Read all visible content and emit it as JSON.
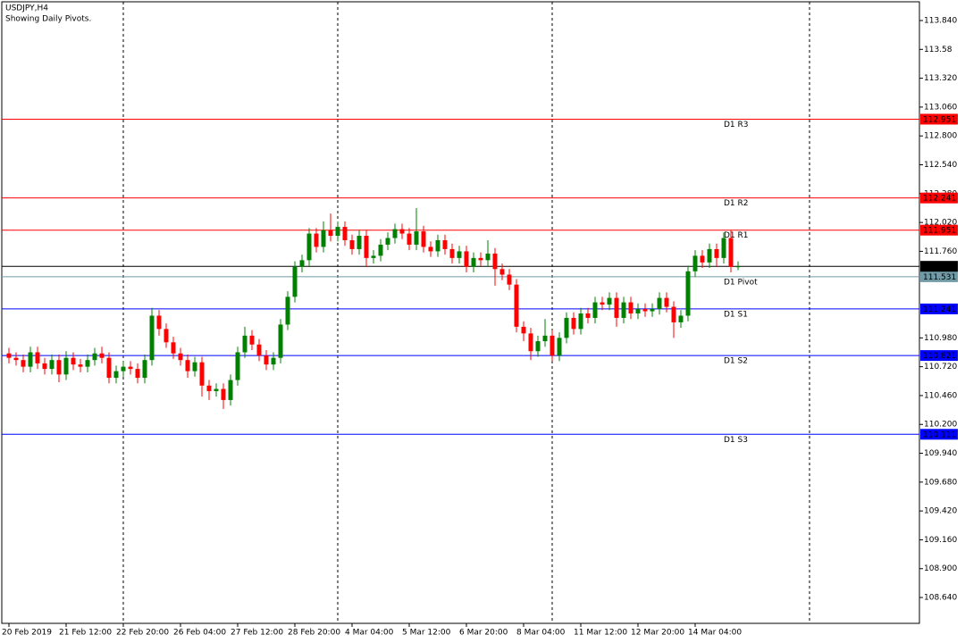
{
  "chart_data": {
    "type": "candlestick",
    "title": "USDJPY,H4",
    "subtitle": "Showing Daily Pivots.",
    "categories": [
      "20 Feb 2019",
      null,
      null,
      null,
      null,
      null,
      null,
      null,
      "21 Feb 12:00",
      null,
      null,
      null,
      null,
      null,
      null,
      null,
      "22 Feb 20:00",
      null,
      null,
      null,
      null,
      null,
      null,
      null,
      "26 Feb 04:00",
      null,
      null,
      null,
      null,
      null,
      null,
      null,
      "27 Feb 12:00",
      null,
      null,
      null,
      null,
      null,
      null,
      null,
      "28 Feb 20:00",
      null,
      null,
      null,
      null,
      null,
      null,
      null,
      "4 Mar 04:00",
      null,
      null,
      null,
      null,
      null,
      null,
      null,
      "5 Mar 12:00",
      null,
      null,
      null,
      null,
      null,
      null,
      null,
      "6 Mar 20:00",
      null,
      null,
      null,
      null,
      null,
      null,
      null,
      "8 Mar 04:00",
      null,
      null,
      null,
      null,
      null,
      null,
      null,
      "11 Mar 12:00",
      null,
      null,
      null,
      null,
      null,
      null,
      null,
      "12 Mar 20:00",
      null,
      null,
      null,
      null,
      null,
      null,
      null,
      "14 Mar 04:00",
      null,
      null,
      null,
      null,
      null,
      null
    ],
    "open": [
      110.84,
      110.8,
      110.78,
      110.72,
      110.85,
      110.75,
      110.7,
      110.78,
      110.65,
      110.8,
      110.74,
      110.72,
      110.78,
      110.84,
      110.8,
      110.62,
      110.68,
      110.72,
      110.7,
      110.62,
      110.78,
      111.18,
      111.06,
      110.94,
      110.84,
      110.78,
      110.68,
      110.76,
      110.55,
      110.5,
      110.52,
      110.42,
      110.6,
      110.85,
      111.0,
      110.92,
      110.82,
      110.74,
      110.8,
      111.1,
      111.35,
      111.62,
      111.68,
      111.92,
      111.8,
      111.95,
      111.9,
      111.98,
      111.86,
      111.78,
      111.9,
      111.7,
      111.72,
      111.82,
      111.88,
      111.96,
      111.92,
      111.82,
      111.94,
      111.8,
      111.76,
      111.86,
      111.78,
      111.7,
      111.76,
      111.62,
      111.7,
      111.68,
      111.74,
      111.6,
      111.55,
      111.46,
      111.08,
      111.02,
      110.86,
      110.95,
      111.0,
      110.82,
      110.98,
      111.16,
      111.06,
      111.2,
      111.16,
      111.3,
      111.28,
      111.34,
      111.16,
      111.3,
      111.2,
      111.24,
      111.22,
      111.24,
      111.34,
      111.26,
      111.12,
      111.18,
      111.58,
      111.72,
      111.66,
      111.78,
      111.7,
      111.88,
      111.62
    ],
    "high": [
      110.89,
      110.85,
      110.83,
      110.9,
      110.9,
      110.8,
      110.83,
      110.83,
      110.86,
      110.85,
      110.79,
      110.83,
      110.89,
      110.9,
      110.85,
      110.73,
      110.77,
      110.77,
      110.75,
      110.83,
      111.25,
      111.23,
      111.11,
      110.99,
      110.89,
      110.83,
      110.81,
      110.81,
      110.6,
      110.57,
      110.57,
      110.65,
      110.9,
      111.08,
      111.05,
      110.97,
      110.87,
      110.85,
      111.15,
      111.4,
      111.67,
      111.73,
      111.97,
      111.97,
      112.03,
      112.1,
      112.03,
      112.03,
      111.91,
      111.95,
      111.95,
      111.77,
      111.87,
      111.93,
      112.01,
      112.01,
      111.97,
      112.15,
      111.99,
      111.85,
      111.91,
      111.91,
      111.83,
      111.81,
      111.81,
      111.75,
      111.75,
      111.86,
      111.79,
      111.65,
      111.6,
      111.51,
      111.13,
      111.07,
      111.0,
      111.15,
      111.05,
      111.03,
      111.21,
      111.21,
      111.25,
      111.25,
      111.35,
      111.35,
      111.39,
      111.39,
      111.35,
      111.35,
      111.29,
      111.29,
      111.29,
      111.39,
      111.39,
      111.31,
      111.23,
      111.63,
      111.77,
      111.77,
      111.83,
      111.83,
      111.93,
      111.95,
      111.67
    ],
    "low": [
      110.75,
      110.73,
      110.67,
      110.67,
      110.7,
      110.65,
      110.65,
      110.58,
      110.6,
      110.69,
      110.67,
      110.67,
      110.73,
      110.75,
      110.57,
      110.57,
      110.63,
      110.65,
      110.57,
      110.57,
      110.73,
      111.0,
      110.89,
      110.79,
      110.73,
      110.62,
      110.63,
      110.45,
      110.42,
      110.45,
      110.34,
      110.37,
      110.55,
      110.8,
      110.87,
      110.77,
      110.69,
      110.69,
      110.75,
      111.05,
      111.3,
      111.57,
      111.63,
      111.75,
      111.75,
      111.85,
      111.85,
      111.81,
      111.73,
      111.73,
      111.62,
      111.65,
      111.67,
      111.77,
      111.83,
      111.87,
      111.77,
      111.77,
      111.75,
      111.71,
      111.71,
      111.73,
      111.65,
      111.65,
      111.57,
      111.57,
      111.63,
      111.63,
      111.45,
      111.5,
      111.41,
      111.03,
      110.95,
      110.78,
      110.81,
      110.9,
      110.77,
      110.77,
      110.93,
      111.01,
      111.01,
      111.11,
      111.11,
      111.23,
      111.23,
      111.08,
      111.11,
      111.15,
      111.15,
      111.17,
      111.17,
      111.19,
      111.21,
      110.98,
      111.07,
      111.13,
      111.53,
      111.61,
      111.61,
      111.62,
      111.65,
      111.57,
      111.59
    ],
    "close": [
      110.8,
      110.78,
      110.72,
      110.85,
      110.75,
      110.7,
      110.78,
      110.65,
      110.8,
      110.74,
      110.72,
      110.78,
      110.84,
      110.8,
      110.62,
      110.68,
      110.72,
      110.7,
      110.62,
      110.78,
      111.18,
      111.06,
      110.94,
      110.84,
      110.78,
      110.68,
      110.76,
      110.55,
      110.5,
      110.52,
      110.42,
      110.6,
      110.85,
      111.0,
      110.92,
      110.82,
      110.74,
      110.8,
      111.1,
      111.35,
      111.62,
      111.68,
      111.92,
      111.8,
      111.95,
      111.9,
      111.98,
      111.86,
      111.78,
      111.9,
      111.7,
      111.72,
      111.82,
      111.88,
      111.96,
      111.92,
      111.82,
      111.94,
      111.8,
      111.76,
      111.86,
      111.78,
      111.7,
      111.76,
      111.62,
      111.7,
      111.68,
      111.74,
      111.6,
      111.55,
      111.46,
      111.08,
      111.02,
      110.86,
      110.95,
      111.0,
      110.82,
      110.98,
      111.16,
      111.06,
      111.2,
      111.16,
      111.3,
      111.28,
      111.34,
      111.16,
      111.3,
      111.2,
      111.24,
      111.22,
      111.24,
      111.34,
      111.26,
      111.12,
      111.18,
      111.58,
      111.72,
      111.66,
      111.78,
      111.7,
      111.88,
      111.62,
      111.625
    ],
    "up_color": "#008000",
    "down_color": "#ff0000",
    "levels": [
      {
        "name": "D1 R3",
        "value": 112.951,
        "color": "#ff0000"
      },
      {
        "name": "D1 R2",
        "value": 112.241,
        "color": "#ff0000"
      },
      {
        "name": "D1 R1",
        "value": 111.951,
        "color": "#ff0000"
      },
      {
        "name": "D1 Pivot",
        "value": 111.531,
        "color": "#6f9aa6"
      },
      {
        "name": "D1 S1",
        "value": 111.241,
        "color": "#0000ff"
      },
      {
        "name": "D1 S2",
        "value": 110.821,
        "color": "#0000ff"
      },
      {
        "name": "D1 S3",
        "value": 110.111,
        "color": "#0000ff"
      }
    ],
    "last_price": 111.625,
    "ylim": [
      108.407,
      114.009
    ],
    "yticks": [
      {
        "value": 113.84,
        "label": "113.840"
      },
      113.58,
      {
        "value": 113.32,
        "label": "113.320"
      },
      {
        "value": 113.06,
        "label": "113.060"
      },
      {
        "value": 112.8,
        "label": "112.800"
      },
      {
        "value": 112.54,
        "label": "112.540"
      },
      {
        "value": 112.28,
        "label": "112.280"
      },
      {
        "value": 112.02,
        "label": "112.020"
      },
      {
        "value": 111.76,
        "label": "111.760"
      },
      {
        "value": 110.98,
        "label": "110.980"
      },
      {
        "value": 110.72,
        "label": "110.720"
      },
      {
        "value": 110.46,
        "label": "110.460"
      },
      {
        "value": 110.2,
        "label": "110.200"
      },
      {
        "value": 109.94,
        "label": "109.940"
      },
      {
        "value": 109.68,
        "label": "109.680"
      },
      {
        "value": 109.42,
        "label": "109.420"
      },
      {
        "value": 109.16,
        "label": "109.160"
      },
      {
        "value": 108.9,
        "label": "108.900"
      },
      {
        "value": 108.64,
        "label": "108.640"
      }
    ]
  }
}
